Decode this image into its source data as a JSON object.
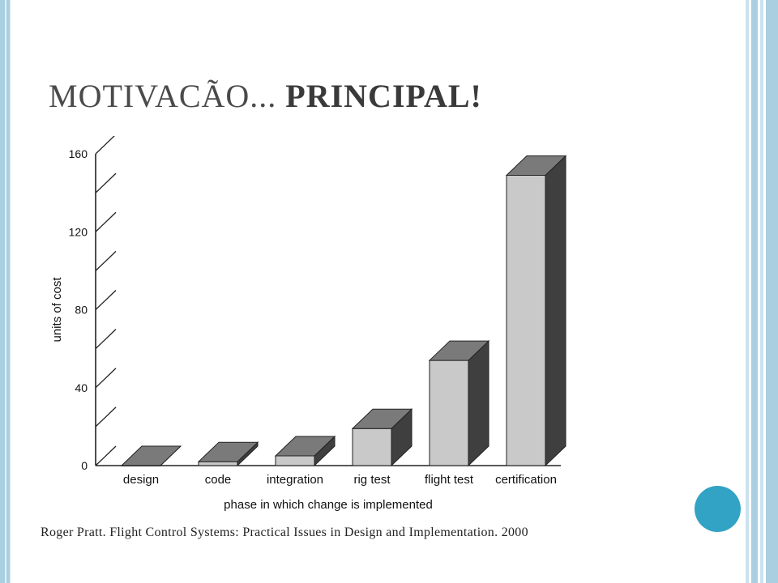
{
  "slide": {
    "title_regular": "MOTIVACÃO...",
    "title_bold": "PRINCIPAL!",
    "citation": "Roger Pratt. Flight Control Systems: Practical Issues in Design and Implementation. 2000"
  },
  "colors": {
    "frame": "#a9cfe0",
    "accent_dot": "#32a3c4",
    "bar_front": "#c9c9c9",
    "bar_top": "#7a7a7a",
    "bar_side": "#3f3f3f"
  },
  "chart_data": {
    "type": "bar",
    "title": "",
    "xlabel": "phase in which change is implemented",
    "ylabel": "units of cost",
    "categories": [
      "design",
      "code",
      "integration",
      "rig test",
      "flight test",
      "certification"
    ],
    "values": [
      0,
      2,
      5,
      19,
      54,
      149
    ],
    "ylim": [
      0,
      160
    ],
    "yticks": [
      0,
      40,
      80,
      120,
      160
    ],
    "grid": false,
    "style": "3d-bars"
  }
}
